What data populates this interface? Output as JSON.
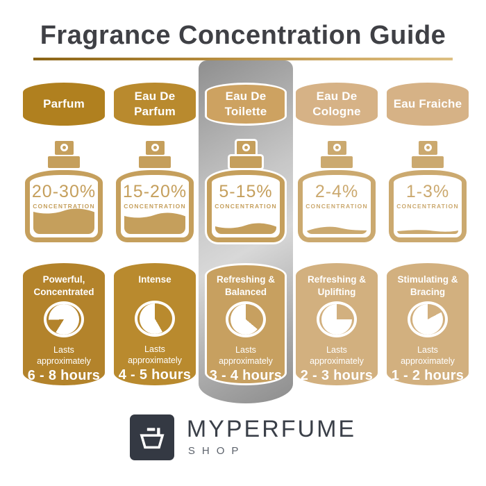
{
  "header": {
    "title": "Fragrance Concentration Guide",
    "underline_colors": [
      "#8a6315",
      "#ddbf82"
    ]
  },
  "labels": {
    "concentration": "CONCENTRATION",
    "lasts": "Lasts approximately"
  },
  "columns": [
    {
      "name": "Parfum",
      "concentration": "20-30%",
      "character": "Powerful, Concentrated",
      "duration": "6 - 8 hours",
      "fill_percent": 44,
      "highlighted": false,
      "clock_wedge": {
        "start_deg": 212,
        "end_deg": 268
      },
      "colors": {
        "badge": "#b0801f",
        "card": "#b3832b",
        "bottle": "#c59f5c"
      }
    },
    {
      "name": "Eau De Parfum",
      "concentration": "15-20%",
      "character": "Intense",
      "duration": "4 - 5 hours",
      "fill_percent": 37,
      "highlighted": false,
      "clock_wedge": {
        "start_deg": 0,
        "end_deg": 150
      },
      "colors": {
        "badge": "#b98a2e",
        "card": "#b98a2e",
        "bottle": "#c59f5c"
      }
    },
    {
      "name": "Eau De Toilette",
      "concentration": "5-15%",
      "character": "Refreshing & Balanced",
      "duration": "3 - 4 hours",
      "fill_percent": 20,
      "highlighted": true,
      "clock_wedge": {
        "start_deg": 0,
        "end_deg": 130
      },
      "colors": {
        "badge": "#cda261",
        "card": "#c7a060",
        "bottle": "#c59f5c"
      }
    },
    {
      "name": "Eau De Cologne",
      "concentration": "2-4%",
      "character": "Refreshing & Uplifting",
      "duration": "2 - 3 hours",
      "fill_percent": 13,
      "highlighted": false,
      "clock_wedge": {
        "start_deg": 0,
        "end_deg": 90
      },
      "colors": {
        "badge": "#d6b286",
        "card": "#d2b07f",
        "bottle": "#cba96f"
      }
    },
    {
      "name": "Eau Fraiche",
      "concentration": "1-3%",
      "character": "Stimulating & Bracing",
      "duration": "1 - 2 hours",
      "fill_percent": 7,
      "highlighted": false,
      "clock_wedge": {
        "start_deg": 0,
        "end_deg": 62
      },
      "colors": {
        "badge": "#d6b286",
        "card": "#d2b07f",
        "bottle": "#cba96f"
      }
    }
  ],
  "brand": {
    "name": "MYPERFUME",
    "sub": "SHOP",
    "icon_bg": "#343943"
  },
  "highlight_strip_color": "#b5b5b5"
}
